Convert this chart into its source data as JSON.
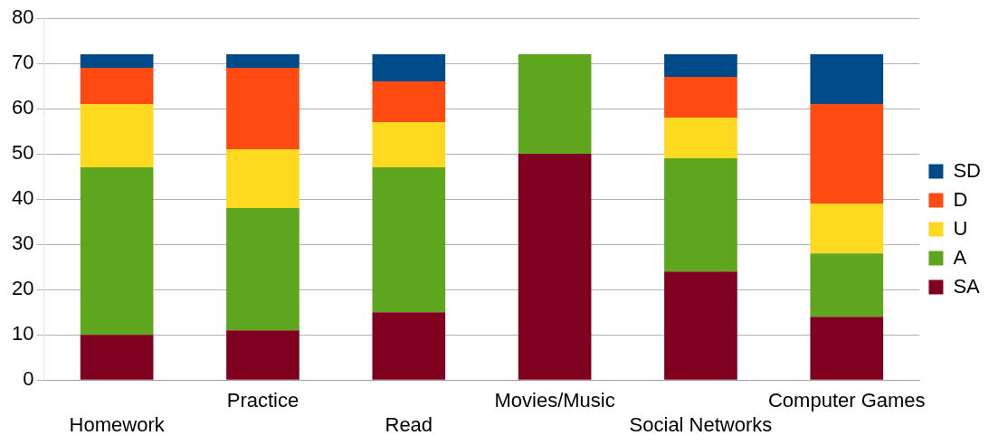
{
  "chart_data": {
    "type": "bar",
    "stacked": true,
    "categories": [
      "Homework",
      "Practice",
      "Read",
      "Movies/Music",
      "Social Networks",
      "Computer Games"
    ],
    "series": [
      {
        "name": "SA",
        "color": "#800020",
        "values": [
          10,
          11,
          15,
          50,
          24,
          14
        ]
      },
      {
        "name": "A",
        "color": "#5ea61e",
        "values": [
          37,
          27,
          32,
          22,
          25,
          14
        ]
      },
      {
        "name": "U",
        "color": "#ffd920",
        "values": [
          14,
          13,
          10,
          0,
          9,
          11
        ]
      },
      {
        "name": "D",
        "color": "#ff4a11",
        "values": [
          8,
          18,
          9,
          0,
          9,
          22
        ]
      },
      {
        "name": "SD",
        "color": "#004a8a",
        "values": [
          3,
          3,
          6,
          0,
          5,
          11
        ]
      }
    ],
    "ylim": [
      0,
      80
    ],
    "yticks": [
      0,
      10,
      20,
      30,
      40,
      50,
      60,
      70,
      80
    ],
    "grid": "y",
    "legend": "right"
  }
}
